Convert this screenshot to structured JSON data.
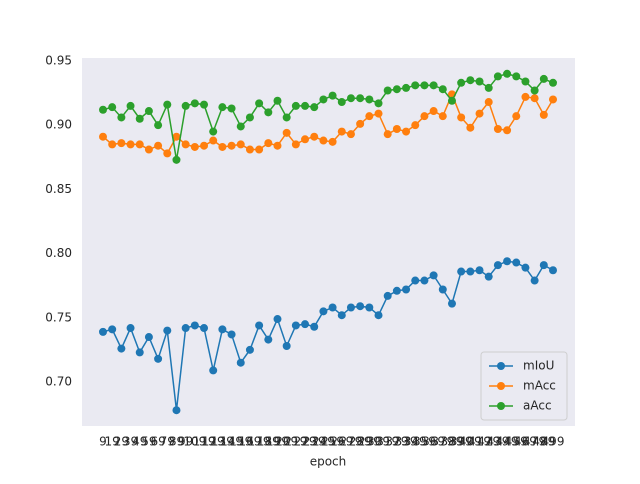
{
  "chart_data": {
    "type": "line",
    "xlabel": "epoch",
    "categories": [
      "9",
      "19",
      "29",
      "39",
      "49",
      "59",
      "69",
      "79",
      "89",
      "99",
      "109",
      "119",
      "129",
      "139",
      "149",
      "159",
      "169",
      "179",
      "189",
      "199",
      "209",
      "219",
      "229",
      "239",
      "249",
      "259",
      "269",
      "279",
      "289",
      "299",
      "309",
      "319",
      "329",
      "339",
      "349",
      "359",
      "369",
      "379",
      "389",
      "399",
      "409",
      "419",
      "429",
      "439",
      "449",
      "459",
      "469",
      "479",
      "489",
      "499"
    ],
    "series": [
      {
        "name": "mIoU",
        "color": "#1f77b4",
        "values": [
          0.739,
          0.741,
          0.726,
          0.742,
          0.723,
          0.735,
          0.718,
          0.74,
          0.678,
          0.742,
          0.744,
          0.742,
          0.709,
          0.741,
          0.737,
          0.715,
          0.725,
          0.744,
          0.733,
          0.749,
          0.728,
          0.744,
          0.745,
          0.743,
          0.755,
          0.758,
          0.752,
          0.758,
          0.759,
          0.758,
          0.752,
          0.767,
          0.771,
          0.772,
          0.779,
          0.779,
          0.783,
          0.772,
          0.761,
          0.786,
          0.786,
          0.787,
          0.782,
          0.791,
          0.794,
          0.793,
          0.789,
          0.779,
          0.791,
          0.787
        ]
      },
      {
        "name": "mAcc",
        "color": "#ff7f0e",
        "values": [
          0.891,
          0.885,
          0.886,
          0.885,
          0.885,
          0.881,
          0.884,
          0.878,
          0.891,
          0.885,
          0.883,
          0.884,
          0.888,
          0.883,
          0.884,
          0.885,
          0.881,
          0.881,
          0.886,
          0.884,
          0.894,
          0.885,
          0.889,
          0.891,
          0.888,
          0.887,
          0.895,
          0.893,
          0.901,
          0.907,
          0.909,
          0.893,
          0.897,
          0.895,
          0.9,
          0.907,
          0.911,
          0.907,
          0.924,
          0.906,
          0.898,
          0.909,
          0.918,
          0.897,
          0.896,
          0.907,
          0.922,
          0.921,
          0.908,
          0.92
        ]
      },
      {
        "name": "aAcc",
        "color": "#2ca02c",
        "values": [
          0.912,
          0.914,
          0.906,
          0.915,
          0.905,
          0.911,
          0.9,
          0.916,
          0.873,
          0.915,
          0.917,
          0.916,
          0.895,
          0.914,
          0.913,
          0.899,
          0.906,
          0.917,
          0.91,
          0.919,
          0.906,
          0.915,
          0.915,
          0.914,
          0.92,
          0.923,
          0.918,
          0.921,
          0.921,
          0.92,
          0.917,
          0.927,
          0.928,
          0.929,
          0.931,
          0.931,
          0.931,
          0.928,
          0.919,
          0.933,
          0.935,
          0.934,
          0.929,
          0.938,
          0.94,
          0.938,
          0.934,
          0.927,
          0.936,
          0.933
        ]
      }
    ],
    "ylim": [
      0.6657,
      0.9523
    ],
    "yticks": [
      {
        "value": 0.7,
        "label": "0.70"
      },
      {
        "value": 0.75,
        "label": "0.75"
      },
      {
        "value": 0.8,
        "label": "0.80"
      },
      {
        "value": 0.85,
        "label": "0.85"
      },
      {
        "value": 0.9,
        "label": "0.90"
      },
      {
        "value": 0.95,
        "label": "0.95"
      }
    ],
    "grid": false,
    "legend": "lower right"
  }
}
